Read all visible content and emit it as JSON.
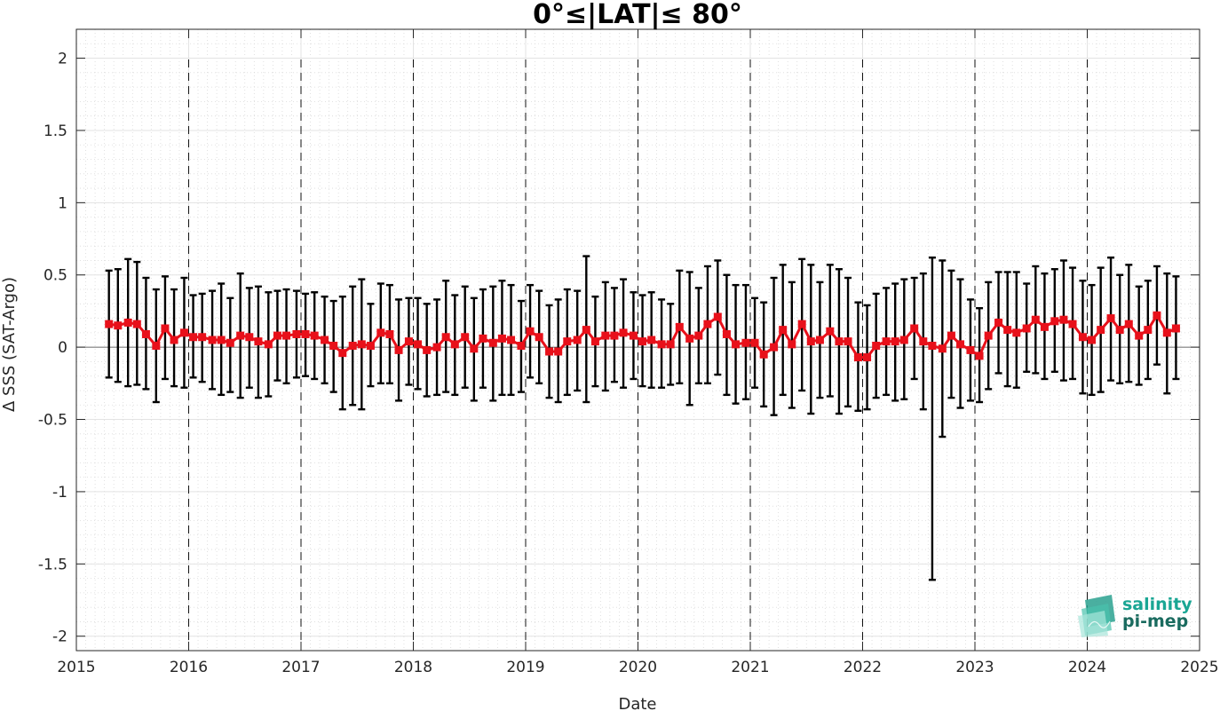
{
  "chart_data": {
    "type": "line",
    "title": "0°≤|LAT|≤ 80°",
    "xlabel": "Date",
    "ylabel": "Δ SSS (SAT-Argo)",
    "xlim": [
      2015,
      2025
    ],
    "ylim": [
      -2.1,
      2.2
    ],
    "x_ticks": [
      "2015",
      "2016",
      "2017",
      "2018",
      "2019",
      "2020",
      "2021",
      "2022",
      "2023",
      "2024",
      "2025"
    ],
    "y_ticks": [
      "-2",
      "-1.5",
      "-1",
      "-0.5",
      "0",
      "0.5",
      "1",
      "1.5",
      "2"
    ],
    "y_tick_values": [
      -2,
      -1.5,
      -1,
      -0.5,
      0,
      0.5,
      1,
      1.5,
      2
    ],
    "grid": "dotted minor and major",
    "year_markers": "dashed vertical lines at each year start",
    "series": [
      {
        "color": "#e8101a",
        "marker": "square",
        "errorbar_color": "#000000",
        "x": [
          2015.29,
          2015.37,
          2015.46,
          2015.54,
          2015.62,
          2015.71,
          2015.79,
          2015.87,
          2015.96,
          2016.04,
          2016.12,
          2016.21,
          2016.29,
          2016.37,
          2016.46,
          2016.54,
          2016.62,
          2016.71,
          2016.79,
          2016.87,
          2016.96,
          2017.04,
          2017.12,
          2017.21,
          2017.29,
          2017.37,
          2017.46,
          2017.54,
          2017.62,
          2017.71,
          2017.79,
          2017.87,
          2017.96,
          2018.04,
          2018.12,
          2018.21,
          2018.29,
          2018.37,
          2018.46,
          2018.54,
          2018.62,
          2018.71,
          2018.79,
          2018.87,
          2018.96,
          2019.04,
          2019.12,
          2019.21,
          2019.29,
          2019.37,
          2019.46,
          2019.54,
          2019.62,
          2019.71,
          2019.79,
          2019.87,
          2019.96,
          2020.04,
          2020.12,
          2020.21,
          2020.29,
          2020.37,
          2020.46,
          2020.54,
          2020.62,
          2020.71,
          2020.79,
          2020.87,
          2020.96,
          2021.04,
          2021.12,
          2021.21,
          2021.29,
          2021.37,
          2021.46,
          2021.54,
          2021.62,
          2021.71,
          2021.79,
          2021.87,
          2021.96,
          2022.04,
          2022.12,
          2022.21,
          2022.29,
          2022.37,
          2022.46,
          2022.54,
          2022.62,
          2022.71,
          2022.79,
          2022.87,
          2022.96,
          2023.04,
          2023.12,
          2023.21,
          2023.29,
          2023.37,
          2023.46,
          2023.54,
          2023.62,
          2023.71,
          2023.79,
          2023.87,
          2023.96,
          2024.04,
          2024.12,
          2024.21,
          2024.29,
          2024.37,
          2024.46,
          2024.54,
          2024.62,
          2024.71,
          2024.79
        ],
        "y": [
          0.16,
          0.15,
          0.17,
          0.16,
          0.09,
          0.01,
          0.13,
          0.05,
          0.1,
          0.07,
          0.07,
          0.05,
          0.05,
          0.03,
          0.08,
          0.07,
          0.04,
          0.02,
          0.08,
          0.08,
          0.09,
          0.09,
          0.08,
          0.05,
          0.01,
          -0.04,
          0.01,
          0.02,
          0.01,
          0.1,
          0.09,
          -0.02,
          0.04,
          0.02,
          -0.02,
          0.0,
          0.07,
          0.02,
          0.07,
          -0.01,
          0.06,
          0.03,
          0.06,
          0.05,
          0.01,
          0.11,
          0.07,
          -0.03,
          -0.03,
          0.04,
          0.05,
          0.12,
          0.04,
          0.08,
          0.08,
          0.1,
          0.08,
          0.04,
          0.05,
          0.02,
          0.02,
          0.14,
          0.06,
          0.08,
          0.16,
          0.21,
          0.09,
          0.02,
          0.03,
          0.03,
          -0.05,
          0.0,
          0.12,
          0.02,
          0.16,
          0.04,
          0.05,
          0.11,
          0.04,
          0.04,
          -0.07,
          -0.07,
          0.01,
          0.04,
          0.04,
          0.05,
          0.13,
          0.04,
          0.01,
          -0.01,
          0.08,
          0.02,
          -0.02,
          -0.06,
          0.08,
          0.17,
          0.12,
          0.1,
          0.13,
          0.19,
          0.14,
          0.18,
          0.19,
          0.16,
          0.07,
          0.05,
          0.12,
          0.2,
          0.12,
          0.16,
          0.08,
          0.12,
          0.22,
          0.1,
          0.13
        ],
        "upper": [
          0.53,
          0.54,
          0.61,
          0.59,
          0.48,
          0.4,
          0.49,
          0.4,
          0.48,
          0.36,
          0.37,
          0.39,
          0.44,
          0.34,
          0.51,
          0.41,
          0.42,
          0.38,
          0.39,
          0.4,
          0.39,
          0.37,
          0.38,
          0.35,
          0.32,
          0.35,
          0.42,
          0.47,
          0.3,
          0.44,
          0.43,
          0.33,
          0.34,
          0.34,
          0.3,
          0.33,
          0.46,
          0.36,
          0.42,
          0.34,
          0.4,
          0.42,
          0.46,
          0.43,
          0.32,
          0.43,
          0.39,
          0.29,
          0.33,
          0.4,
          0.39,
          0.63,
          0.35,
          0.45,
          0.41,
          0.47,
          0.38,
          0.36,
          0.38,
          0.33,
          0.3,
          0.53,
          0.52,
          0.41,
          0.56,
          0.6,
          0.5,
          0.43,
          0.43,
          0.34,
          0.31,
          0.48,
          0.57,
          0.45,
          0.61,
          0.57,
          0.45,
          0.57,
          0.54,
          0.48,
          0.31,
          0.29,
          0.37,
          0.41,
          0.44,
          0.47,
          0.48,
          0.51,
          0.62,
          0.6,
          0.53,
          0.47,
          0.33,
          0.27,
          0.45,
          0.52,
          0.52,
          0.52,
          0.44,
          0.56,
          0.51,
          0.54,
          0.6,
          0.55,
          0.46,
          0.43,
          0.55,
          0.62,
          0.5,
          0.57,
          0.42,
          0.46,
          0.56,
          0.51,
          0.49
        ],
        "lower": [
          -0.21,
          -0.24,
          -0.27,
          -0.26,
          -0.29,
          -0.38,
          -0.22,
          -0.27,
          -0.28,
          -0.21,
          -0.24,
          -0.29,
          -0.33,
          -0.31,
          -0.35,
          -0.28,
          -0.35,
          -0.34,
          -0.23,
          -0.25,
          -0.21,
          -0.2,
          -0.22,
          -0.25,
          -0.31,
          -0.43,
          -0.4,
          -0.43,
          -0.27,
          -0.25,
          -0.25,
          -0.37,
          -0.26,
          -0.29,
          -0.34,
          -0.33,
          -0.31,
          -0.33,
          -0.28,
          -0.37,
          -0.28,
          -0.37,
          -0.33,
          -0.33,
          -0.31,
          -0.21,
          -0.25,
          -0.35,
          -0.38,
          -0.33,
          -0.3,
          -0.38,
          -0.27,
          -0.3,
          -0.24,
          -0.28,
          -0.22,
          -0.27,
          -0.28,
          -0.28,
          -0.26,
          -0.25,
          -0.4,
          -0.25,
          -0.25,
          -0.19,
          -0.33,
          -0.39,
          -0.36,
          -0.28,
          -0.41,
          -0.47,
          -0.33,
          -0.42,
          -0.3,
          -0.46,
          -0.35,
          -0.34,
          -0.46,
          -0.41,
          -0.44,
          -0.43,
          -0.35,
          -0.33,
          -0.37,
          -0.36,
          -0.22,
          -0.43,
          -1.61,
          -0.62,
          -0.35,
          -0.42,
          -0.37,
          -0.38,
          -0.29,
          -0.18,
          -0.27,
          -0.28,
          -0.17,
          -0.18,
          -0.22,
          -0.17,
          -0.23,
          -0.22,
          -0.32,
          -0.33,
          -0.31,
          -0.23,
          -0.25,
          -0.24,
          -0.26,
          -0.22,
          -0.12,
          -0.32,
          -0.22
        ]
      }
    ]
  },
  "logo": {
    "line1": "salinity",
    "line2": "pi-mep",
    "color_primary": "#1aa694",
    "color_secondary": "#1a6b5f"
  },
  "colors": {
    "series": "#e8101a",
    "errorbar": "#000000",
    "grid": "#d9d9d9",
    "axis": "#262626"
  }
}
